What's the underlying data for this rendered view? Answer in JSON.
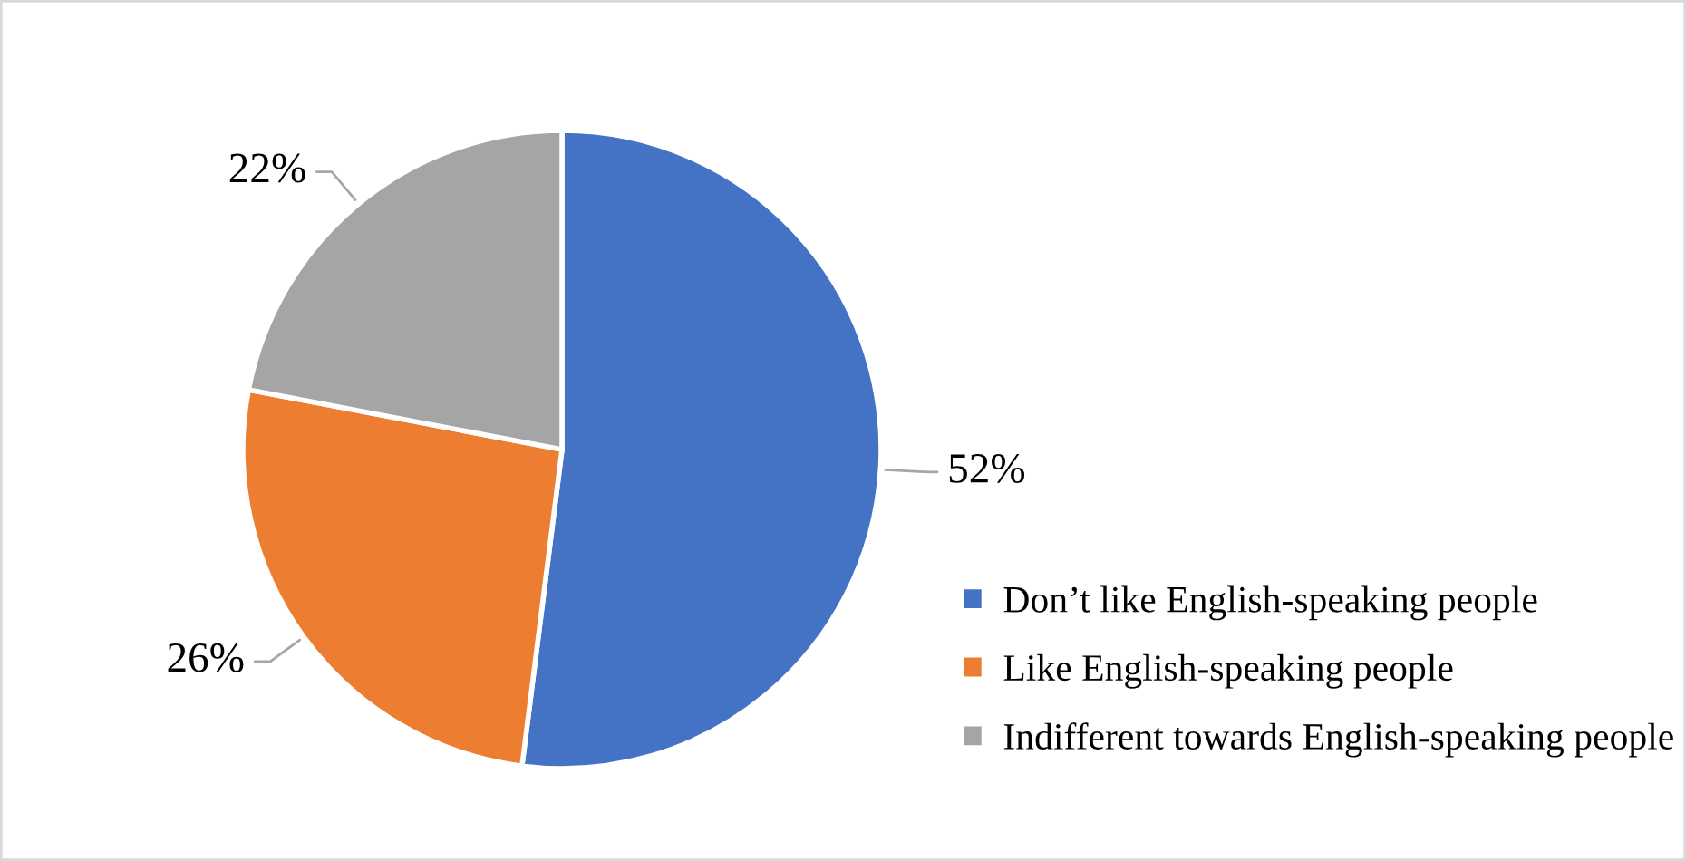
{
  "chart_data": {
    "type": "pie",
    "categories": [
      "Don’t like English-speaking people",
      "Like English-speaking people",
      "Indifferent towards English-speaking people"
    ],
    "values": [
      52,
      26,
      22
    ],
    "colors": [
      "#4472c4",
      "#ed7d31",
      "#a5a5a5"
    ],
    "value_labels": [
      "52%",
      "26%",
      "22%"
    ],
    "legend": "right"
  }
}
